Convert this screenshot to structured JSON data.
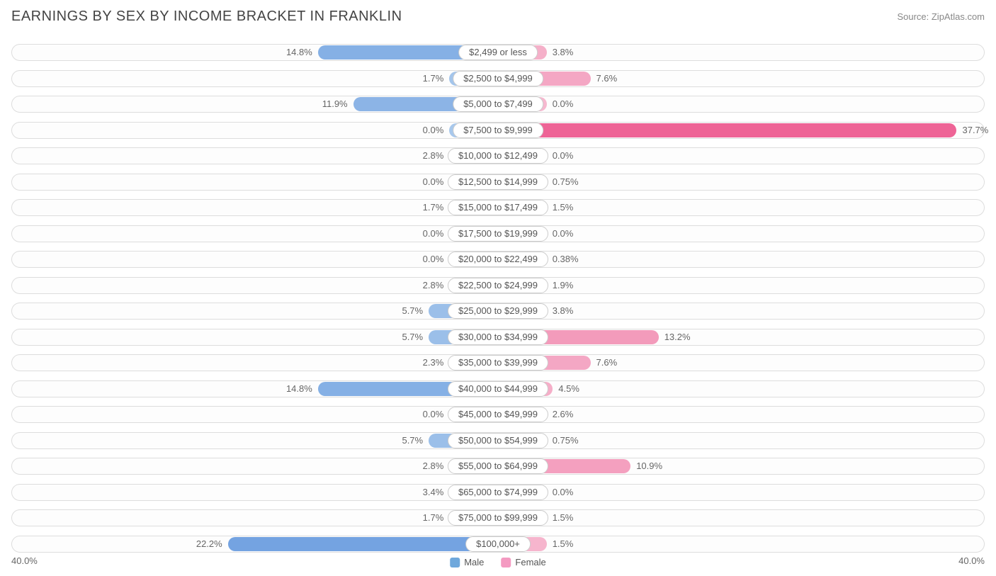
{
  "title": "EARNINGS BY SEX BY INCOME BRACKET IN FRANKLIN",
  "source": "Source: ZipAtlas.com",
  "axis": {
    "left": "40.0%",
    "right": "40.0%",
    "max": 40.0
  },
  "legend": {
    "male": {
      "label": "Male",
      "color": "#6fa8dc"
    },
    "female": {
      "label": "Female",
      "color": "#f49ac1"
    }
  },
  "colors": {
    "male_min": "#a8c8ec",
    "male_max": "#4a86d8",
    "female_min": "#f6b8cf",
    "female_max": "#ed5f93",
    "track_border": "#dddddd",
    "pill_border": "#cccccc",
    "text": "#666666"
  },
  "rows": [
    {
      "label": "$2,499 or less",
      "male": 14.8,
      "female": 3.8,
      "male_pct": "14.8%",
      "female_pct": "3.8%"
    },
    {
      "label": "$2,500 to $4,999",
      "male": 1.7,
      "female": 7.6,
      "male_pct": "1.7%",
      "female_pct": "7.6%"
    },
    {
      "label": "$5,000 to $7,499",
      "male": 11.9,
      "female": 0.0,
      "male_pct": "11.9%",
      "female_pct": "0.0%"
    },
    {
      "label": "$7,500 to $9,999",
      "male": 0.0,
      "female": 37.7,
      "male_pct": "0.0%",
      "female_pct": "37.7%"
    },
    {
      "label": "$10,000 to $12,499",
      "male": 2.8,
      "female": 0.0,
      "male_pct": "2.8%",
      "female_pct": "0.0%"
    },
    {
      "label": "$12,500 to $14,999",
      "male": 0.0,
      "female": 0.75,
      "male_pct": "0.0%",
      "female_pct": "0.75%"
    },
    {
      "label": "$15,000 to $17,499",
      "male": 1.7,
      "female": 1.5,
      "male_pct": "1.7%",
      "female_pct": "1.5%"
    },
    {
      "label": "$17,500 to $19,999",
      "male": 0.0,
      "female": 0.0,
      "male_pct": "0.0%",
      "female_pct": "0.0%"
    },
    {
      "label": "$20,000 to $22,499",
      "male": 0.0,
      "female": 0.38,
      "male_pct": "0.0%",
      "female_pct": "0.38%"
    },
    {
      "label": "$22,500 to $24,999",
      "male": 2.8,
      "female": 1.9,
      "male_pct": "2.8%",
      "female_pct": "1.9%"
    },
    {
      "label": "$25,000 to $29,999",
      "male": 5.7,
      "female": 3.8,
      "male_pct": "5.7%",
      "female_pct": "3.8%"
    },
    {
      "label": "$30,000 to $34,999",
      "male": 5.7,
      "female": 13.2,
      "male_pct": "5.7%",
      "female_pct": "13.2%"
    },
    {
      "label": "$35,000 to $39,999",
      "male": 2.3,
      "female": 7.6,
      "male_pct": "2.3%",
      "female_pct": "7.6%"
    },
    {
      "label": "$40,000 to $44,999",
      "male": 14.8,
      "female": 4.5,
      "male_pct": "14.8%",
      "female_pct": "4.5%"
    },
    {
      "label": "$45,000 to $49,999",
      "male": 0.0,
      "female": 2.6,
      "male_pct": "0.0%",
      "female_pct": "2.6%"
    },
    {
      "label": "$50,000 to $54,999",
      "male": 5.7,
      "female": 0.75,
      "male_pct": "5.7%",
      "female_pct": "0.75%"
    },
    {
      "label": "$55,000 to $64,999",
      "male": 2.8,
      "female": 10.9,
      "male_pct": "2.8%",
      "female_pct": "10.9%"
    },
    {
      "label": "$65,000 to $74,999",
      "male": 3.4,
      "female": 0.0,
      "male_pct": "3.4%",
      "female_pct": "0.0%"
    },
    {
      "label": "$75,000 to $99,999",
      "male": 1.7,
      "female": 1.5,
      "male_pct": "1.7%",
      "female_pct": "1.5%"
    },
    {
      "label": "$100,000+",
      "male": 22.2,
      "female": 1.5,
      "male_pct": "22.2%",
      "female_pct": "1.5%"
    }
  ]
}
